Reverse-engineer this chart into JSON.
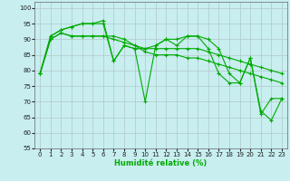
{
  "xlabel": "Humidité relative (%)",
  "bg_color": "#c8eef0",
  "grid_color": "#b0c8c8",
  "line_color": "#00aa00",
  "xlim": [
    -0.5,
    23.5
  ],
  "ylim": [
    55,
    102
  ],
  "yticks": [
    55,
    60,
    65,
    70,
    75,
    80,
    85,
    90,
    95,
    100
  ],
  "xticks": [
    0,
    1,
    2,
    3,
    4,
    5,
    6,
    7,
    8,
    9,
    10,
    11,
    12,
    13,
    14,
    15,
    16,
    17,
    18,
    19,
    20,
    21,
    22,
    23
  ],
  "lines": [
    [
      79,
      91,
      93,
      94,
      95,
      95,
      95,
      83,
      88,
      87,
      70,
      88,
      90,
      88,
      91,
      91,
      87,
      79,
      76,
      76,
      84,
      67,
      64,
      71
    ],
    [
      79,
      91,
      93,
      94,
      95,
      95,
      96,
      83,
      88,
      87,
      87,
      88,
      90,
      90,
      91,
      91,
      90,
      87,
      79,
      76,
      84,
      66,
      71,
      71
    ],
    [
      79,
      90,
      92,
      91,
      91,
      91,
      91,
      91,
      90,
      88,
      87,
      87,
      87,
      87,
      87,
      87,
      86,
      85,
      84,
      83,
      82,
      81,
      80,
      79
    ],
    [
      79,
      90,
      92,
      91,
      91,
      91,
      91,
      90,
      89,
      88,
      86,
      85,
      85,
      85,
      84,
      84,
      83,
      82,
      81,
      80,
      79,
      78,
      77,
      76
    ]
  ]
}
